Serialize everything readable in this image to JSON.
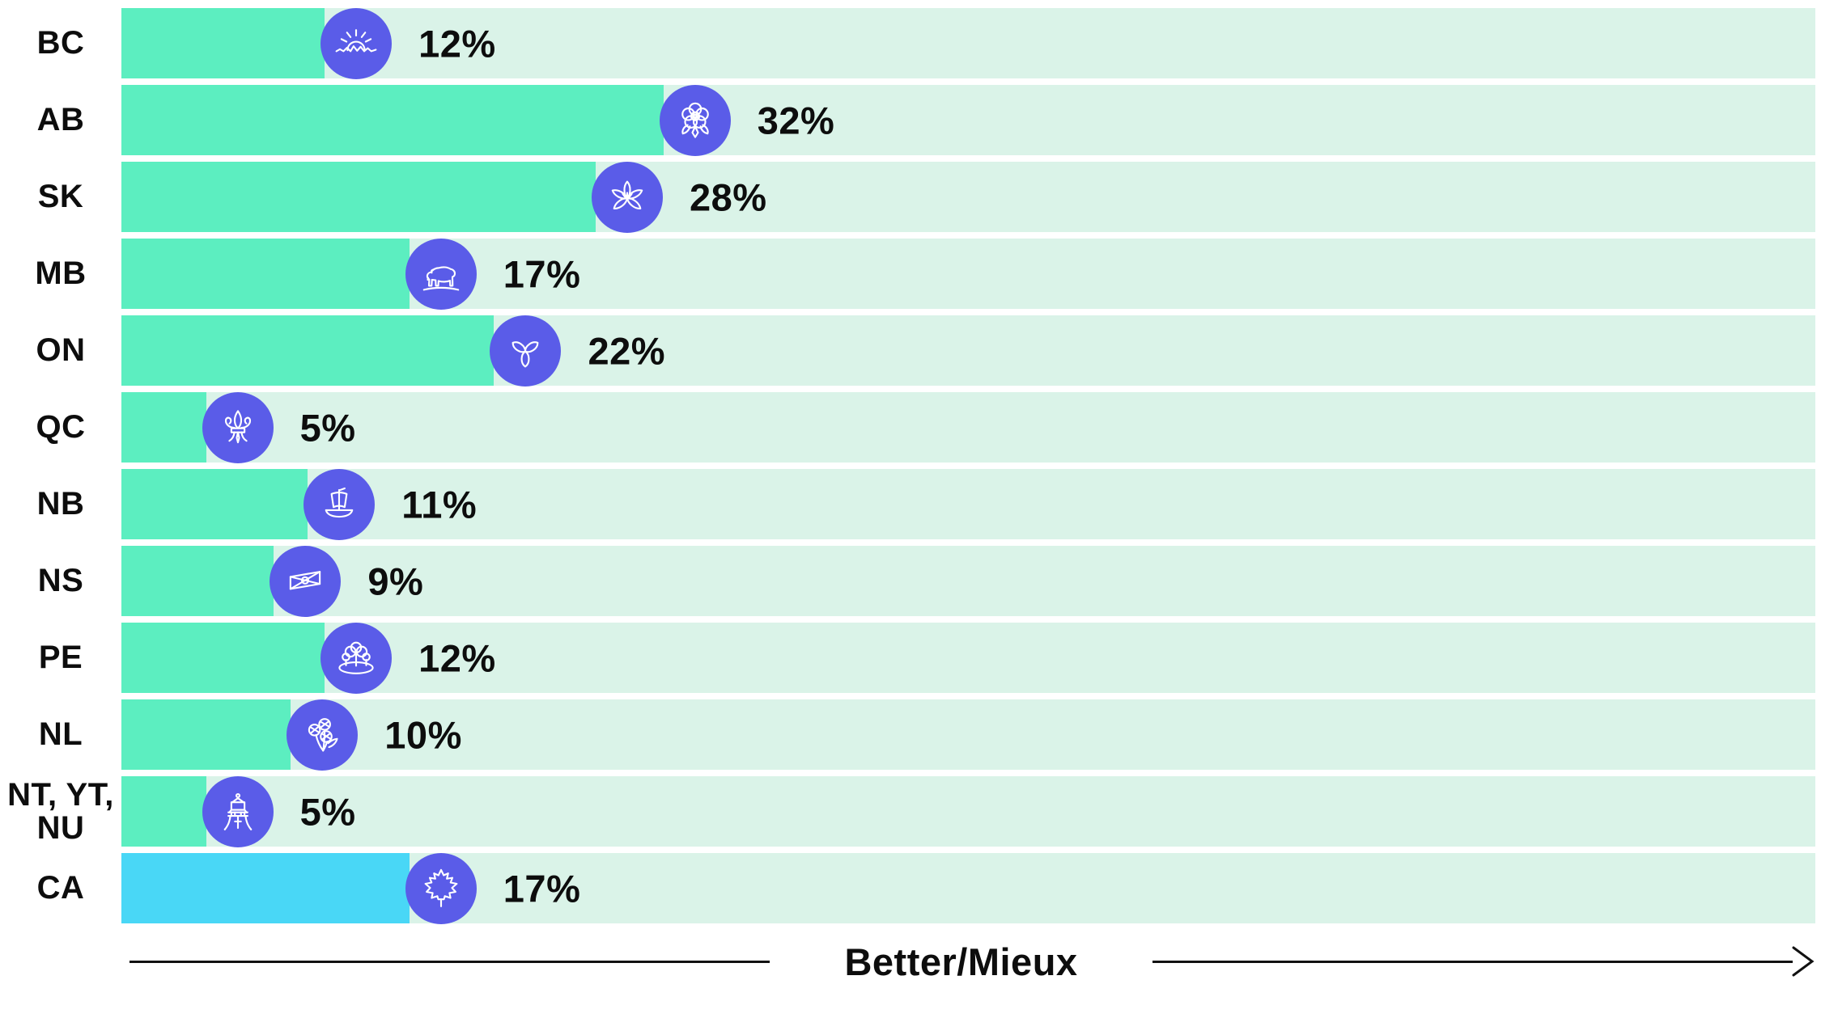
{
  "chart_data": {
    "type": "bar",
    "orientation": "horizontal",
    "title": "",
    "categories": [
      "BC",
      "AB",
      "SK",
      "MB",
      "ON",
      "QC",
      "NB",
      "NS",
      "PE",
      "NL",
      "NT, YT, NU",
      "CA"
    ],
    "values": [
      12,
      32,
      28,
      17,
      22,
      5,
      11,
      9,
      12,
      10,
      5,
      17
    ],
    "value_labels": [
      "12%",
      "32%",
      "28%",
      "17%",
      "22%",
      "5%",
      "11%",
      "9%",
      "12%",
      "10%",
      "5%",
      "17%"
    ],
    "xlim": [
      0,
      100
    ],
    "axis_label": "Better/Mieux",
    "grid": false,
    "legend": false
  },
  "rows": [
    {
      "label": "BC",
      "display_label": "BC",
      "value": 12,
      "value_label": "12%",
      "icon": "bc-sunrise-icon",
      "bar_color": "#5ceec0"
    },
    {
      "label": "AB",
      "display_label": "AB",
      "value": 32,
      "value_label": "32%",
      "icon": "ab-wild-rose-icon",
      "bar_color": "#5ceec0"
    },
    {
      "label": "SK",
      "display_label": "SK",
      "value": 28,
      "value_label": "28%",
      "icon": "sk-prairie-lily-icon",
      "bar_color": "#5ceec0"
    },
    {
      "label": "MB",
      "display_label": "MB",
      "value": 17,
      "value_label": "17%",
      "icon": "mb-bison-icon",
      "bar_color": "#5ceec0"
    },
    {
      "label": "ON",
      "display_label": "ON",
      "value": 22,
      "value_label": "22%",
      "icon": "on-trillium-icon",
      "bar_color": "#5ceec0"
    },
    {
      "label": "QC",
      "display_label": "QC",
      "value": 5,
      "value_label": "5%",
      "icon": "qc-fleur-de-lis-icon",
      "bar_color": "#5ceec0"
    },
    {
      "label": "NB",
      "display_label": "NB",
      "value": 11,
      "value_label": "11%",
      "icon": "nb-sailing-ship-icon",
      "bar_color": "#5ceec0"
    },
    {
      "label": "NS",
      "display_label": "NS",
      "value": 9,
      "value_label": "9%",
      "icon": "ns-flag-icon",
      "bar_color": "#5ceec0"
    },
    {
      "label": "PE",
      "display_label": "PE",
      "value": 12,
      "value_label": "12%",
      "icon": "pe-island-trees-icon",
      "bar_color": "#5ceec0"
    },
    {
      "label": "NL",
      "display_label": "NL",
      "value": 10,
      "value_label": "10%",
      "icon": "nl-pitcher-plant-icon",
      "bar_color": "#5ceec0"
    },
    {
      "label": "NT, YT, NU",
      "display_label": "NT, YT,\nNU",
      "value": 5,
      "value_label": "5%",
      "icon": "territories-tower-icon",
      "bar_color": "#5ceec0"
    },
    {
      "label": "CA",
      "display_label": "CA",
      "value": 17,
      "value_label": "17%",
      "icon": "ca-maple-leaf-icon",
      "bar_color": "#49d7f6"
    }
  ],
  "axis": {
    "label": "Better/Mieux"
  },
  "colors": {
    "bar_province": "#5ceec0",
    "bar_canada": "#49d7f6",
    "track": "#daf3e8",
    "icon_circle": "#5a5ce8",
    "text": "#0d0d0d",
    "axis_line": "#111111"
  }
}
